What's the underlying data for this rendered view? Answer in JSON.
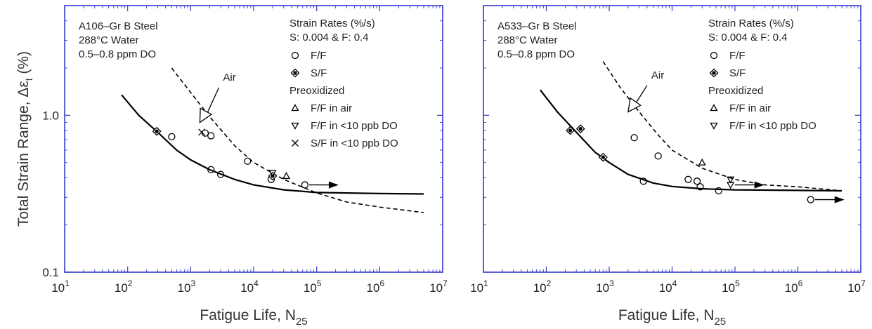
{
  "chart_data": [
    {
      "type": "scatter",
      "xlabel": "Fatigue Life, N",
      "xlabel_sub": "25",
      "ylabel": "Total Strain Range, Δε",
      "ylabel_sub": "t",
      "ylabel_unit": "(%)",
      "xscale": "log",
      "yscale": "log",
      "xlim": [
        10,
        10000000
      ],
      "ylim": [
        0.1,
        5
      ],
      "x_ticks": [
        {
          "v": 10,
          "label": "10",
          "exp": "1"
        },
        {
          "v": 100,
          "label": "10",
          "exp": "2"
        },
        {
          "v": 1000,
          "label": "10",
          "exp": "3"
        },
        {
          "v": 10000,
          "label": "10",
          "exp": "4"
        },
        {
          "v": 100000,
          "label": "10",
          "exp": "5"
        },
        {
          "v": 1000000,
          "label": "10",
          "exp": "6"
        },
        {
          "v": 10000000,
          "label": "10",
          "exp": "7"
        }
      ],
      "y_ticks": [
        {
          "v": 0.1,
          "label": "0.1"
        },
        {
          "v": 1.0,
          "label": "1.0"
        }
      ],
      "annotations": [
        "A106–Gr B Steel",
        "288°C Water",
        "0.5–0.8 ppm DO"
      ],
      "legend_title": "Strain Rates (%/s)",
      "legend_subtitle": "S: 0.004 & F: 0.4",
      "legend_group2": "Preoxidized",
      "air_label": "Air",
      "legend": [
        {
          "name": "F/F",
          "marker": "circle"
        },
        {
          "name": "S/F",
          "marker": "filled-diamond"
        },
        {
          "name": "F/F in air",
          "marker": "triangle-up"
        },
        {
          "name": "F/F in <10 ppb DO",
          "marker": "triangle-down"
        },
        {
          "name": "S/F in <10 ppb DO",
          "marker": "cross"
        }
      ],
      "series": [
        {
          "legend_index": 0,
          "marker": "circle",
          "points": [
            [
              500,
              0.73
            ],
            [
              1700,
              0.77
            ],
            [
              2100,
              0.74
            ],
            [
              2100,
              0.45
            ],
            [
              3000,
              0.42
            ],
            [
              8000,
              0.51
            ],
            [
              19000,
              0.39
            ],
            [
              65000,
              0.36
            ]
          ]
        },
        {
          "legend_index": 1,
          "marker": "filled-diamond",
          "points": [
            [
              290,
              0.79
            ],
            [
              20000,
              0.41
            ]
          ]
        },
        {
          "legend_index": 2,
          "marker": "triangle-up",
          "points": [
            [
              33000,
              0.41
            ]
          ]
        },
        {
          "legend_index": 3,
          "marker": "triangle-down",
          "points": [
            [
              20000,
              0.43
            ]
          ]
        },
        {
          "legend_index": 4,
          "marker": "cross",
          "points": [
            [
              1500,
              0.78
            ]
          ]
        }
      ],
      "runouts": [
        [
          65000,
          0.36
        ]
      ],
      "curves": [
        {
          "style": "solid",
          "points": [
            [
              80,
              1.35
            ],
            [
              150,
              1.0
            ],
            [
              300,
              0.78
            ],
            [
              600,
              0.6
            ],
            [
              1000,
              0.52
            ],
            [
              2000,
              0.45
            ],
            [
              5000,
              0.39
            ],
            [
              10000,
              0.36
            ],
            [
              30000,
              0.335
            ],
            [
              100000,
              0.322
            ],
            [
              1000000,
              0.317
            ],
            [
              5000000,
              0.315
            ]
          ]
        },
        {
          "style": "dashed",
          "points": [
            [
              500,
              2.0
            ],
            [
              1000,
              1.4
            ],
            [
              2000,
              0.98
            ],
            [
              5000,
              0.64
            ],
            [
              10000,
              0.5
            ],
            [
              30000,
              0.39
            ],
            [
              100000,
              0.32
            ],
            [
              300000,
              0.28
            ],
            [
              1000000,
              0.26
            ],
            [
              5000000,
              0.24
            ]
          ]
        }
      ],
      "air_arrow": {
        "from": [
          2800,
          1.5
        ],
        "to": [
          1400,
          0.9
        ]
      }
    },
    {
      "type": "scatter",
      "xlabel": "Fatigue Life, N",
      "xlabel_sub": "25",
      "xscale": "log",
      "yscale": "log",
      "xlim": [
        10,
        10000000
      ],
      "ylim": [
        0.1,
        5
      ],
      "x_ticks": [
        {
          "v": 10,
          "label": "10",
          "exp": "1"
        },
        {
          "v": 100,
          "label": "10",
          "exp": "2"
        },
        {
          "v": 1000,
          "label": "10",
          "exp": "3"
        },
        {
          "v": 10000,
          "label": "10",
          "exp": "4"
        },
        {
          "v": 100000,
          "label": "10",
          "exp": "5"
        },
        {
          "v": 1000000,
          "label": "10",
          "exp": "6"
        },
        {
          "v": 10000000,
          "label": "10",
          "exp": "7"
        }
      ],
      "y_ticks": [],
      "annotations": [
        "A533–Gr B Steel",
        "288°C Water",
        "0.5–0.8 ppm DO"
      ],
      "legend_title": "Strain Rates (%/s)",
      "legend_subtitle": "S: 0.004 & F: 0.4",
      "legend_group2": "Preoxidized",
      "air_label": "Air",
      "legend": [
        {
          "name": "F/F",
          "marker": "circle"
        },
        {
          "name": "S/F",
          "marker": "filled-diamond"
        },
        {
          "name": "F/F in air",
          "marker": "triangle-up"
        },
        {
          "name": "F/F in <10 ppb DO",
          "marker": "triangle-down"
        }
      ],
      "series": [
        {
          "legend_index": 0,
          "marker": "circle",
          "points": [
            [
              2500,
              0.72
            ],
            [
              6000,
              0.55
            ],
            [
              3500,
              0.38
            ],
            [
              18000,
              0.39
            ],
            [
              25000,
              0.38
            ],
            [
              28000,
              0.35
            ],
            [
              55000,
              0.33
            ],
            [
              1600000,
              0.29
            ]
          ]
        },
        {
          "legend_index": 1,
          "marker": "filled-diamond",
          "points": [
            [
              240,
              0.8
            ],
            [
              350,
              0.82
            ],
            [
              800,
              0.54
            ]
          ]
        },
        {
          "legend_index": 2,
          "marker": "triangle-up",
          "points": [
            [
              30000,
              0.5
            ]
          ]
        },
        {
          "legend_index": 3,
          "marker": "triangle-down",
          "points": [
            [
              85000,
              0.39
            ],
            [
              85000,
              0.36
            ]
          ]
        }
      ],
      "runouts": [
        [
          85000,
          0.36
        ],
        [
          1600000,
          0.29
        ]
      ],
      "curves": [
        {
          "style": "solid",
          "points": [
            [
              80,
              1.45
            ],
            [
              150,
              1.05
            ],
            [
              300,
              0.78
            ],
            [
              600,
              0.58
            ],
            [
              1000,
              0.5
            ],
            [
              2000,
              0.42
            ],
            [
              5000,
              0.37
            ],
            [
              10000,
              0.352
            ],
            [
              30000,
              0.34
            ],
            [
              100000,
              0.335
            ],
            [
              1000000,
              0.332
            ],
            [
              5000000,
              0.33
            ]
          ]
        },
        {
          "style": "dashed",
          "points": [
            [
              800,
              2.2
            ],
            [
              1500,
              1.5
            ],
            [
              3000,
              1.05
            ],
            [
              6000,
              0.75
            ],
            [
              10000,
              0.6
            ],
            [
              30000,
              0.46
            ],
            [
              100000,
              0.39
            ],
            [
              300000,
              0.36
            ],
            [
              1000000,
              0.35
            ],
            [
              5000000,
              0.33
            ]
          ]
        }
      ],
      "air_arrow": {
        "from": [
          4000,
          1.55
        ],
        "to": [
          2000,
          1.05
        ]
      }
    }
  ]
}
